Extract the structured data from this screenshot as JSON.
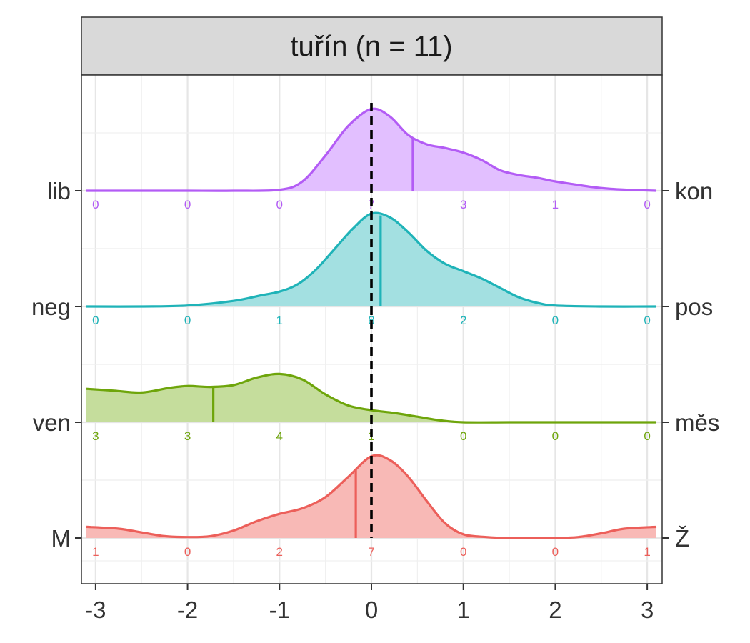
{
  "chart_data": {
    "type": "ridgeline",
    "title": "tuřín (n = 11)",
    "xlim": [
      -3.1,
      3.1
    ],
    "x_ticks": [
      -3,
      -2,
      -1,
      0,
      1,
      2,
      3
    ],
    "x_tick_labels": [
      "-3",
      "-2",
      "-1",
      "0",
      "1",
      "2",
      "3"
    ],
    "reference_line_x": 0,
    "grid": true,
    "series": [
      {
        "left_label": "lib",
        "right_label": "kon",
        "color": "#b35cf5",
        "fill": "#e2bfff",
        "mean": 0.45,
        "counts": [
          0,
          0,
          0,
          7,
          3,
          1,
          0
        ],
        "density": [
          [
            -3.1,
            0
          ],
          [
            -2.5,
            0
          ],
          [
            -2,
            0
          ],
          [
            -1.5,
            0
          ],
          [
            -1,
            0.01
          ],
          [
            -0.75,
            0.1
          ],
          [
            -0.5,
            0.38
          ],
          [
            -0.25,
            0.7
          ],
          [
            0,
            0.88
          ],
          [
            0.2,
            0.8
          ],
          [
            0.4,
            0.6
          ],
          [
            0.6,
            0.5
          ],
          [
            0.8,
            0.46
          ],
          [
            1,
            0.41
          ],
          [
            1.2,
            0.33
          ],
          [
            1.4,
            0.22
          ],
          [
            1.6,
            0.17
          ],
          [
            1.8,
            0.14
          ],
          [
            2,
            0.1
          ],
          [
            2.2,
            0.07
          ],
          [
            2.4,
            0.04
          ],
          [
            2.6,
            0.02
          ],
          [
            2.8,
            0.01
          ],
          [
            3.1,
            0
          ]
        ]
      },
      {
        "left_label": "neg",
        "right_label": "pos",
        "color": "#1fb3b8",
        "fill": "#a3e0e1",
        "mean": 0.1,
        "counts": [
          0,
          0,
          1,
          8,
          2,
          0,
          0
        ],
        "density": [
          [
            -3.1,
            0
          ],
          [
            -2.5,
            0
          ],
          [
            -2,
            0.01
          ],
          [
            -1.5,
            0.06
          ],
          [
            -1.2,
            0.12
          ],
          [
            -1,
            0.16
          ],
          [
            -0.8,
            0.24
          ],
          [
            -0.6,
            0.4
          ],
          [
            -0.4,
            0.62
          ],
          [
            -0.2,
            0.84
          ],
          [
            0,
            1.0
          ],
          [
            0.2,
            0.96
          ],
          [
            0.4,
            0.8
          ],
          [
            0.6,
            0.6
          ],
          [
            0.8,
            0.46
          ],
          [
            1,
            0.38
          ],
          [
            1.2,
            0.3
          ],
          [
            1.4,
            0.2
          ],
          [
            1.6,
            0.1
          ],
          [
            1.8,
            0.04
          ],
          [
            2,
            0.01
          ],
          [
            2.5,
            0
          ],
          [
            3.1,
            0
          ]
        ]
      },
      {
        "left_label": "ven",
        "right_label": "měs",
        "color": "#6ea50b",
        "fill": "#c5dd9c",
        "mean": -1.72,
        "counts": [
          3,
          3,
          4,
          1,
          0,
          0,
          0
        ],
        "density": [
          [
            -3.1,
            0.36
          ],
          [
            -2.8,
            0.34
          ],
          [
            -2.5,
            0.32
          ],
          [
            -2.2,
            0.37
          ],
          [
            -2,
            0.39
          ],
          [
            -1.75,
            0.38
          ],
          [
            -1.5,
            0.4
          ],
          [
            -1.25,
            0.48
          ],
          [
            -1,
            0.52
          ],
          [
            -0.75,
            0.46
          ],
          [
            -0.5,
            0.3
          ],
          [
            -0.25,
            0.18
          ],
          [
            0,
            0.13
          ],
          [
            0.25,
            0.1
          ],
          [
            0.5,
            0.06
          ],
          [
            0.75,
            0.02
          ],
          [
            1,
            0
          ],
          [
            1.5,
            0
          ],
          [
            2,
            0
          ],
          [
            3.1,
            0
          ]
        ]
      },
      {
        "left_label": "M",
        "right_label": "Ž",
        "color": "#ec5f5a",
        "fill": "#f8b9b6",
        "mean": -0.17,
        "counts": [
          1,
          0,
          2,
          7,
          0,
          0,
          1
        ],
        "density": [
          [
            -3.1,
            0.12
          ],
          [
            -2.75,
            0.1
          ],
          [
            -2.5,
            0.06
          ],
          [
            -2.25,
            0.02
          ],
          [
            -2,
            0.01
          ],
          [
            -1.75,
            0.02
          ],
          [
            -1.5,
            0.08
          ],
          [
            -1.25,
            0.18
          ],
          [
            -1,
            0.26
          ],
          [
            -0.75,
            0.32
          ],
          [
            -0.5,
            0.44
          ],
          [
            -0.25,
            0.66
          ],
          [
            0,
            0.88
          ],
          [
            0.2,
            0.84
          ],
          [
            0.4,
            0.66
          ],
          [
            0.6,
            0.4
          ],
          [
            0.8,
            0.16
          ],
          [
            1,
            0.04
          ],
          [
            1.25,
            0.01
          ],
          [
            1.5,
            0
          ],
          [
            2,
            0
          ],
          [
            2.25,
            0.01
          ],
          [
            2.5,
            0.05
          ],
          [
            2.75,
            0.1
          ],
          [
            3.1,
            0.12
          ]
        ]
      }
    ]
  }
}
